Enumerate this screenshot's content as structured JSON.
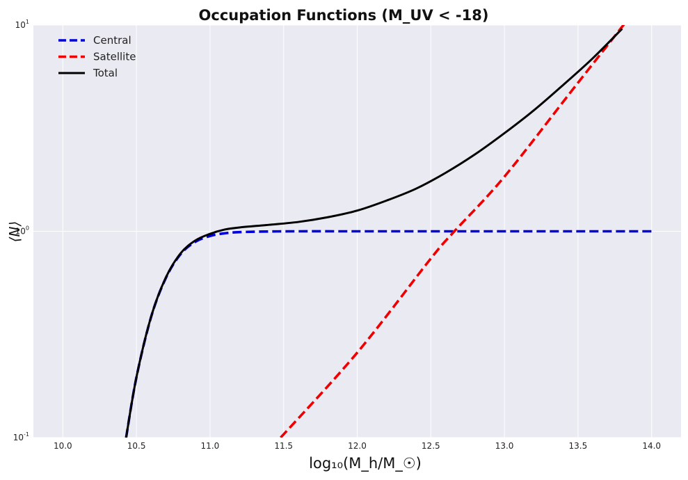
{
  "chart_data": {
    "type": "line",
    "title": "Occupation Functions (M_UV < -18)",
    "xlabel": "log₁₀(M_h/M_☉)",
    "ylabel": "⟨N⟩",
    "xlim": [
      9.8,
      14.2
    ],
    "ylim": [
      0.1,
      10
    ],
    "yscale": "log",
    "grid": true,
    "legend_position": "top-left",
    "x_ticks": [
      "10.0",
      "10.5",
      "11.0",
      "11.5",
      "12.0",
      "12.5",
      "13.0",
      "13.5",
      "14.0"
    ],
    "y_ticks": [
      "10^-1",
      "10^0",
      "10^1"
    ],
    "colors": {
      "background": "#eaeaf2",
      "grid": "#ffffff",
      "central": "#0000dd",
      "satellite": "#ee0000",
      "total": "#000000"
    },
    "series": [
      {
        "name": "Central",
        "style": "dashed",
        "color": "#0000dd",
        "x": [
          10.43,
          10.5,
          10.6,
          10.7,
          10.8,
          10.9,
          11.0,
          11.1,
          11.2,
          11.4,
          11.6,
          12.0,
          12.5,
          13.0,
          13.5,
          14.0
        ],
        "y": [
          0.1,
          0.196,
          0.385,
          0.594,
          0.775,
          0.889,
          0.949,
          0.978,
          0.991,
          0.998,
          1.0,
          1.0,
          1.0,
          1.0,
          1.0,
          1.0
        ]
      },
      {
        "name": "Satellite",
        "style": "dashed",
        "color": "#ee0000",
        "x": [
          11.48,
          12.0,
          12.5,
          12.66,
          13.0,
          13.5,
          14.0
        ],
        "y": [
          0.1,
          0.258,
          0.738,
          1.0,
          1.84,
          5.25,
          14.9
        ]
      },
      {
        "name": "Total",
        "style": "solid",
        "color": "#000000",
        "x": [
          10.43,
          10.5,
          10.6,
          10.7,
          10.8,
          10.9,
          11.0,
          11.1,
          11.2,
          11.4,
          11.6,
          11.8,
          12.0,
          12.2,
          12.4,
          12.6,
          12.8,
          13.0,
          13.2,
          13.4,
          13.6,
          13.8
        ],
        "y": [
          0.1,
          0.196,
          0.386,
          0.597,
          0.782,
          0.902,
          0.972,
          1.02,
          1.044,
          1.075,
          1.11,
          1.17,
          1.26,
          1.41,
          1.61,
          1.92,
          2.36,
          2.99,
          3.86,
          5.13,
          6.9,
          9.6
        ]
      }
    ]
  }
}
